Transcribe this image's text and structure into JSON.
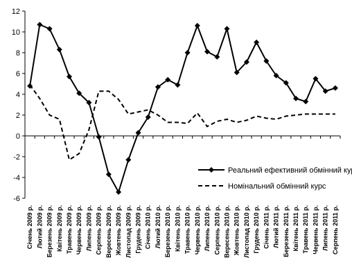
{
  "chart_data": {
    "type": "line",
    "title": "",
    "xlabel": "",
    "ylabel": "",
    "ylim": [
      -6,
      12
    ],
    "yticks": [
      -6,
      -4,
      -2,
      0,
      2,
      4,
      6,
      8,
      10,
      12
    ],
    "grid": false,
    "legend_position": "lower-right",
    "categories": [
      "Січень 2009 р.",
      "Лютий 2009 р.",
      "Березень 2009 р.",
      "Квітень 2009 р.",
      "Травень 2009 р.",
      "Червень 2009 р.",
      "Липень 2009 р.",
      "Серпень 2009 р.",
      "Вересень 2009 р.",
      "Жовтень 2009 р.",
      "Листопад 2009 р.",
      "Грудень 2009 р.",
      "Січень 2010 р.",
      "Лютий 2010 р.",
      "Березень 2010 р.",
      "Квітень 2010 р.",
      "Травень 2010 р.",
      "Червень 2010 р.",
      "Липень 2010 р.",
      "Серпень 2010 р.",
      "Вересень 2010 р.",
      "Жовтень 2010 р.",
      "Листопад 2010 р.",
      "Грудень 2010 р.",
      "Січень 2011 р.",
      "Лютий 2011 р.",
      "Березень 2011 р.",
      "Квітень 2011 р.",
      "Травень 2011 р.",
      "Червень 2011 р.",
      "Липень 2011 р.",
      "Серпень 2011 р."
    ],
    "series": [
      {
        "name": "Реальний ефективний обмінний курс",
        "style": "solid-diamond",
        "color": "#000000",
        "values": [
          4.8,
          10.7,
          10.3,
          8.3,
          5.7,
          4.1,
          3.2,
          -0.1,
          -3.7,
          -5.4,
          -2.3,
          0.3,
          1.8,
          4.7,
          5.4,
          4.9,
          8.0,
          10.6,
          8.1,
          7.6,
          10.3,
          6.1,
          7.1,
          9.0,
          7.2,
          5.8,
          5.1,
          3.6,
          3.3,
          5.5,
          4.3,
          4.6
        ]
      },
      {
        "name": "Номінальний обмінний курс",
        "style": "dashed",
        "color": "#000000",
        "values": [
          4.9,
          3.6,
          2.0,
          1.6,
          -2.3,
          -1.7,
          0.6,
          4.3,
          4.3,
          3.5,
          2.1,
          2.3,
          2.5,
          2.0,
          1.3,
          1.3,
          1.2,
          2.2,
          0.9,
          1.4,
          1.6,
          1.3,
          1.5,
          1.9,
          1.7,
          1.6,
          1.9,
          2.0,
          2.1,
          2.1,
          2.1,
          2.1
        ]
      }
    ]
  }
}
